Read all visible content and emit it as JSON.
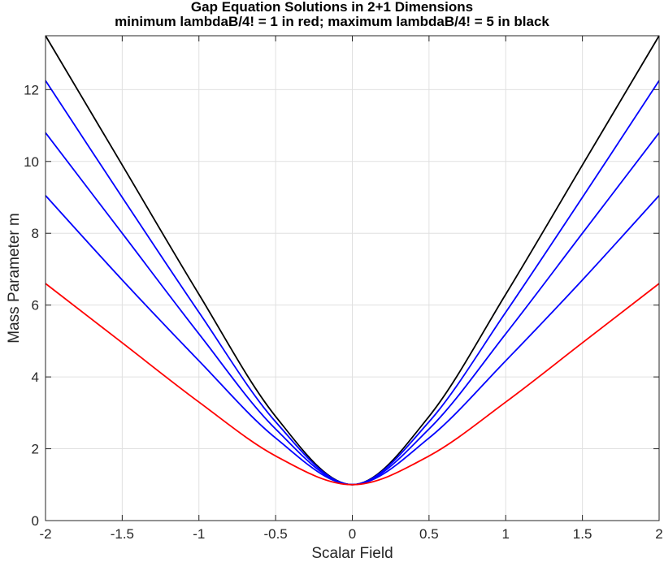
{
  "chart_data": {
    "type": "line",
    "title": "Gap Equation Solutions in 2+1 Dimensions",
    "subtitle": "minimum lambdaB/4! = 1 in red; maximum lambdaB/4! = 5 in black",
    "xlabel": "Scalar Field",
    "ylabel": "Mass Parameter m",
    "xlim": [
      -2,
      2
    ],
    "ylim": [
      0,
      13.5
    ],
    "xticks": [
      -2,
      -1.5,
      -1,
      -0.5,
      0,
      0.5,
      1,
      1.5,
      2
    ],
    "xtick_labels": [
      "-2",
      "-1.5",
      "-1",
      "-0.5",
      "0",
      "0.5",
      "1",
      "1.5",
      "2"
    ],
    "yticks": [
      0,
      2,
      4,
      6,
      8,
      10,
      12
    ],
    "ytick_labels": [
      "0",
      "2",
      "4",
      "6",
      "8",
      "10",
      "12"
    ],
    "grid": true,
    "x": [
      -2,
      -1.5,
      -1,
      -0.5,
      0,
      0.5,
      1,
      1.5,
      2
    ],
    "series": [
      {
        "color": "#000000",
        "values": [
          13.5,
          9.9,
          6.3,
          2.9,
          1.0,
          2.9,
          6.3,
          9.9,
          13.5
        ]
      },
      {
        "color": "#0000ff",
        "values": [
          12.25,
          9.0,
          5.8,
          2.75,
          1.0,
          2.75,
          5.8,
          9.0,
          12.25
        ]
      },
      {
        "color": "#0000ff",
        "values": [
          10.8,
          8.0,
          5.2,
          2.55,
          1.0,
          2.55,
          5.2,
          8.0,
          10.8
        ]
      },
      {
        "color": "#0000ff",
        "values": [
          9.05,
          6.7,
          4.45,
          2.3,
          1.0,
          2.3,
          4.45,
          6.7,
          9.05
        ]
      },
      {
        "color": "#ff0000",
        "values": [
          6.6,
          4.95,
          3.3,
          1.8,
          1.0,
          1.8,
          3.3,
          4.95,
          6.6
        ]
      }
    ]
  }
}
